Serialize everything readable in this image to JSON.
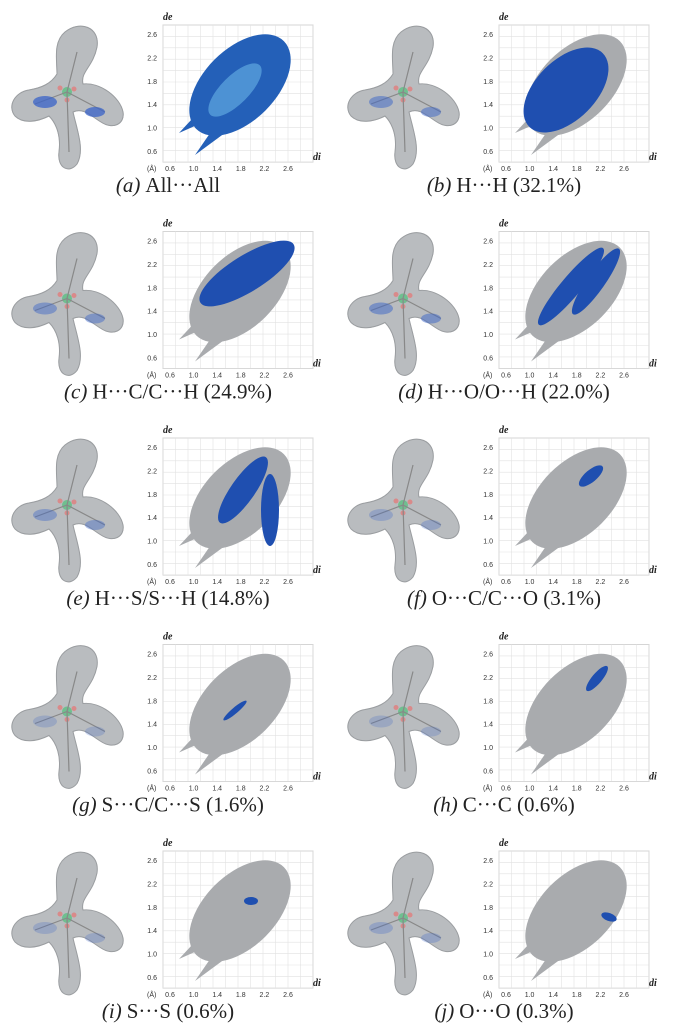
{
  "axes": {
    "de": "de",
    "di": "di",
    "unit": "(Å)",
    "ticks": [
      "0.6",
      "1.0",
      "1.4",
      "1.8",
      "2.2",
      "2.6"
    ]
  },
  "panels": [
    {
      "tag": "(a)",
      "caption": "All···All"
    },
    {
      "tag": "(b)",
      "caption": "H···H (32.1%)"
    },
    {
      "tag": "(c)",
      "caption": "H···C/C···H (24.9%)"
    },
    {
      "tag": "(d)",
      "caption": "H···O/O···H (22.0%)"
    },
    {
      "tag": "(e)",
      "caption": "H···S/S···H (14.8%)"
    },
    {
      "tag": "(f)",
      "caption": "O···C/C···O (3.1%)"
    },
    {
      "tag": "(g)",
      "caption": "S···C/C···S (1.6%)"
    },
    {
      "tag": "(h)",
      "caption": "C···C (0.6%)"
    },
    {
      "tag": "(i)",
      "caption": "S···S (0.6%)"
    },
    {
      "tag": "(j)",
      "caption": "O···O (0.3%)"
    }
  ]
}
